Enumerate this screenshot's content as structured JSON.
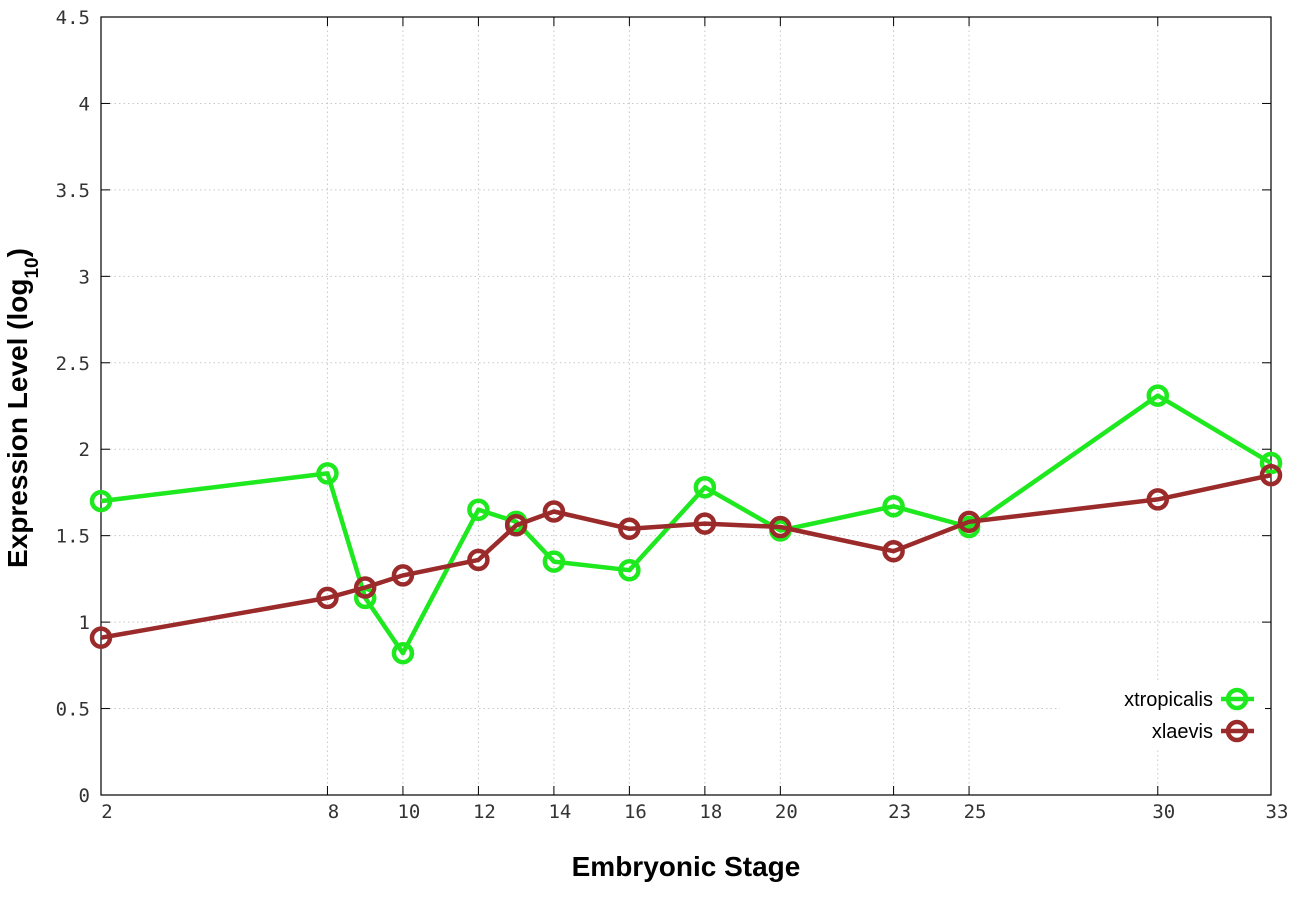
{
  "chart_data": {
    "type": "line",
    "xlabel": "Embryonic Stage",
    "ylabel": {
      "main": "Expression Level (log",
      "subscript": "10",
      "close": ")"
    },
    "xlim": [
      2,
      33
    ],
    "ylim": [
      0,
      4.5
    ],
    "xticks": [
      2,
      8,
      10,
      12,
      14,
      16,
      18,
      20,
      23,
      25,
      30,
      33
    ],
    "yticks": [
      0,
      0.5,
      1,
      1.5,
      2,
      2.5,
      3,
      3.5,
      4,
      4.5
    ],
    "ytick_labels": [
      "0",
      "0.5",
      "1",
      "1.5",
      "2",
      "2.5",
      "3",
      "3.5",
      "4",
      "4.5"
    ],
    "grid": true,
    "legend_position": "bottom-right",
    "series": [
      {
        "name": "xtropicalis",
        "color": "#1ee81e",
        "points": [
          {
            "x": 2,
            "y": 1.7
          },
          {
            "x": 8,
            "y": 1.86
          },
          {
            "x": 9,
            "y": 1.14
          },
          {
            "x": 10,
            "y": 0.82
          },
          {
            "x": 12,
            "y": 1.65
          },
          {
            "x": 13,
            "y": 1.58
          },
          {
            "x": 14,
            "y": 1.35
          },
          {
            "x": 16,
            "y": 1.3
          },
          {
            "x": 18,
            "y": 1.78
          },
          {
            "x": 20,
            "y": 1.53
          },
          {
            "x": 23,
            "y": 1.67
          },
          {
            "x": 25,
            "y": 1.55
          },
          {
            "x": 30,
            "y": 2.31
          },
          {
            "x": 33,
            "y": 1.92
          }
        ]
      },
      {
        "name": "xlaevis",
        "color": "#9b2a2a",
        "points": [
          {
            "x": 2,
            "y": 0.91
          },
          {
            "x": 8,
            "y": 1.14
          },
          {
            "x": 9,
            "y": 1.2
          },
          {
            "x": 10,
            "y": 1.27
          },
          {
            "x": 12,
            "y": 1.36
          },
          {
            "x": 13,
            "y": 1.56
          },
          {
            "x": 14,
            "y": 1.64
          },
          {
            "x": 16,
            "y": 1.54
          },
          {
            "x": 18,
            "y": 1.57
          },
          {
            "x": 20,
            "y": 1.55
          },
          {
            "x": 23,
            "y": 1.41
          },
          {
            "x": 25,
            "y": 1.58
          },
          {
            "x": 30,
            "y": 1.71
          },
          {
            "x": 33,
            "y": 1.85
          }
        ]
      }
    ]
  }
}
